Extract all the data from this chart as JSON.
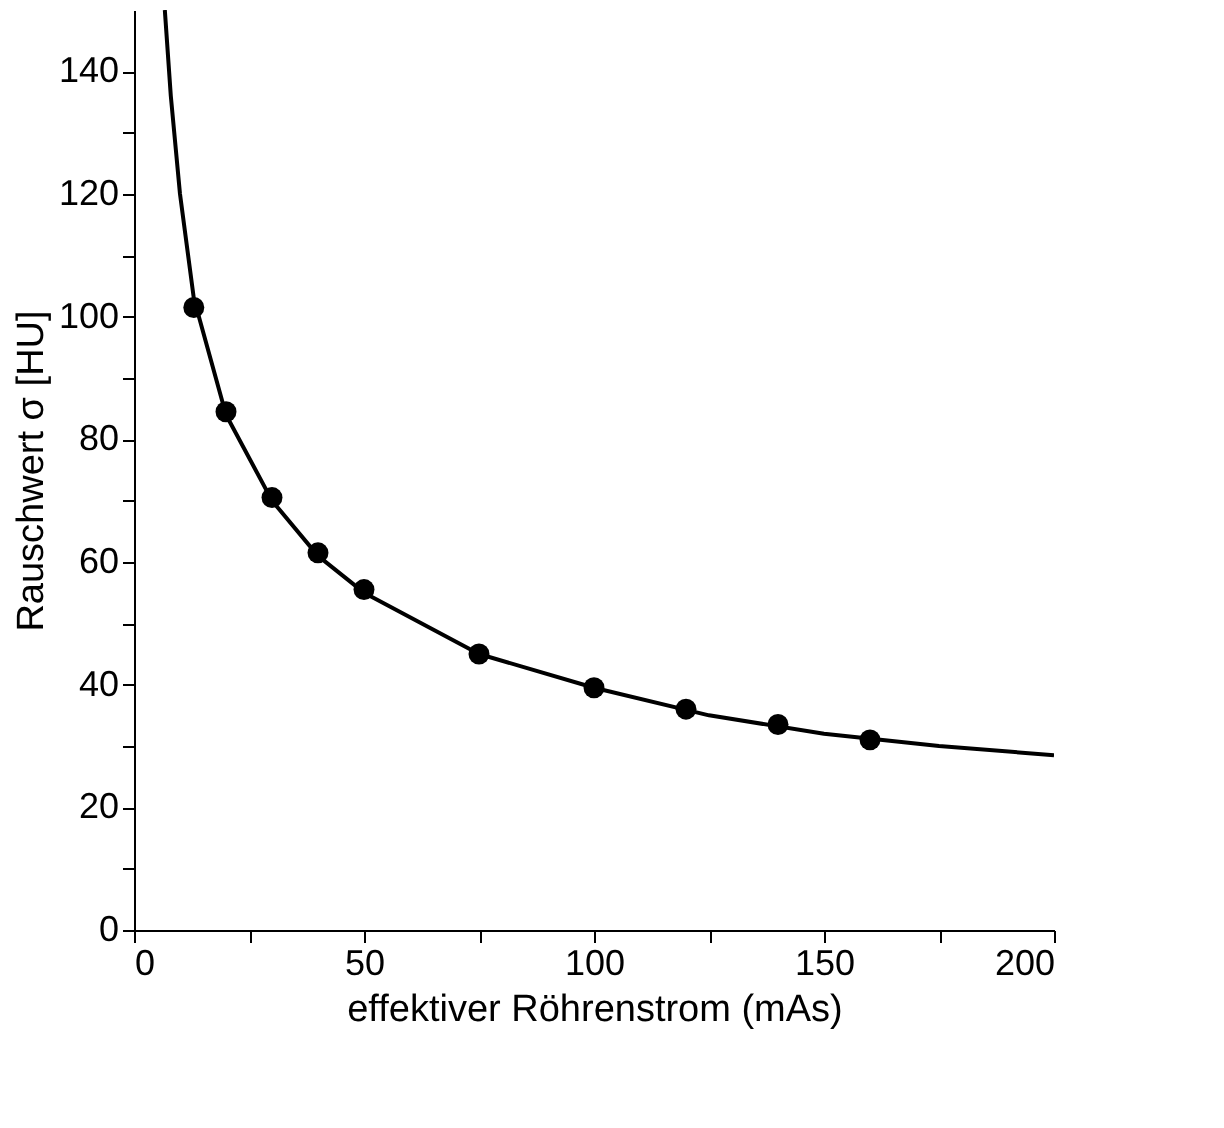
{
  "chart_data": {
    "type": "scatter",
    "xlabel": "effektiver Röhrenstrom (mAs)",
    "ylabel": "Rauschwert σ [HU]",
    "xlim": [
      0,
      200
    ],
    "ylim": [
      0,
      150
    ],
    "xticks": [
      0,
      {
        "value": 25,
        "label": null
      },
      50,
      {
        "value": 75,
        "label": null
      },
      100,
      {
        "value": 125,
        "label": null
      },
      150,
      {
        "value": 175,
        "label": null
      },
      200
    ],
    "yticks": [
      0,
      {
        "value": 10,
        "label": null
      },
      20,
      {
        "value": 30,
        "label": null
      },
      40,
      {
        "value": 50,
        "label": null
      },
      60,
      {
        "value": 70,
        "label": null
      },
      80,
      {
        "value": 90,
        "label": null
      },
      100,
      {
        "value": 110,
        "label": null
      },
      120,
      {
        "value": 130,
        "label": null
      },
      140
    ],
    "grid": false,
    "series": [
      {
        "type": "line",
        "color": "#000000",
        "marker": "none",
        "line_style": "solid",
        "x": [
          6.7,
          8,
          10,
          13,
          20,
          30,
          40,
          50,
          75,
          100,
          125,
          150,
          175,
          200
        ],
        "values": [
          150,
          136,
          120,
          103,
          84,
          70,
          61,
          55,
          45,
          39.5,
          35,
          32,
          30,
          28.5
        ]
      },
      {
        "color": "#000000",
        "marker": "circle",
        "x": [
          13,
          20,
          30,
          40,
          50,
          75,
          100,
          120,
          140,
          160
        ],
        "values": [
          101.5,
          84.5,
          70.5,
          61.5,
          55.5,
          45,
          39.5,
          36,
          33.5,
          31
        ]
      }
    ]
  }
}
